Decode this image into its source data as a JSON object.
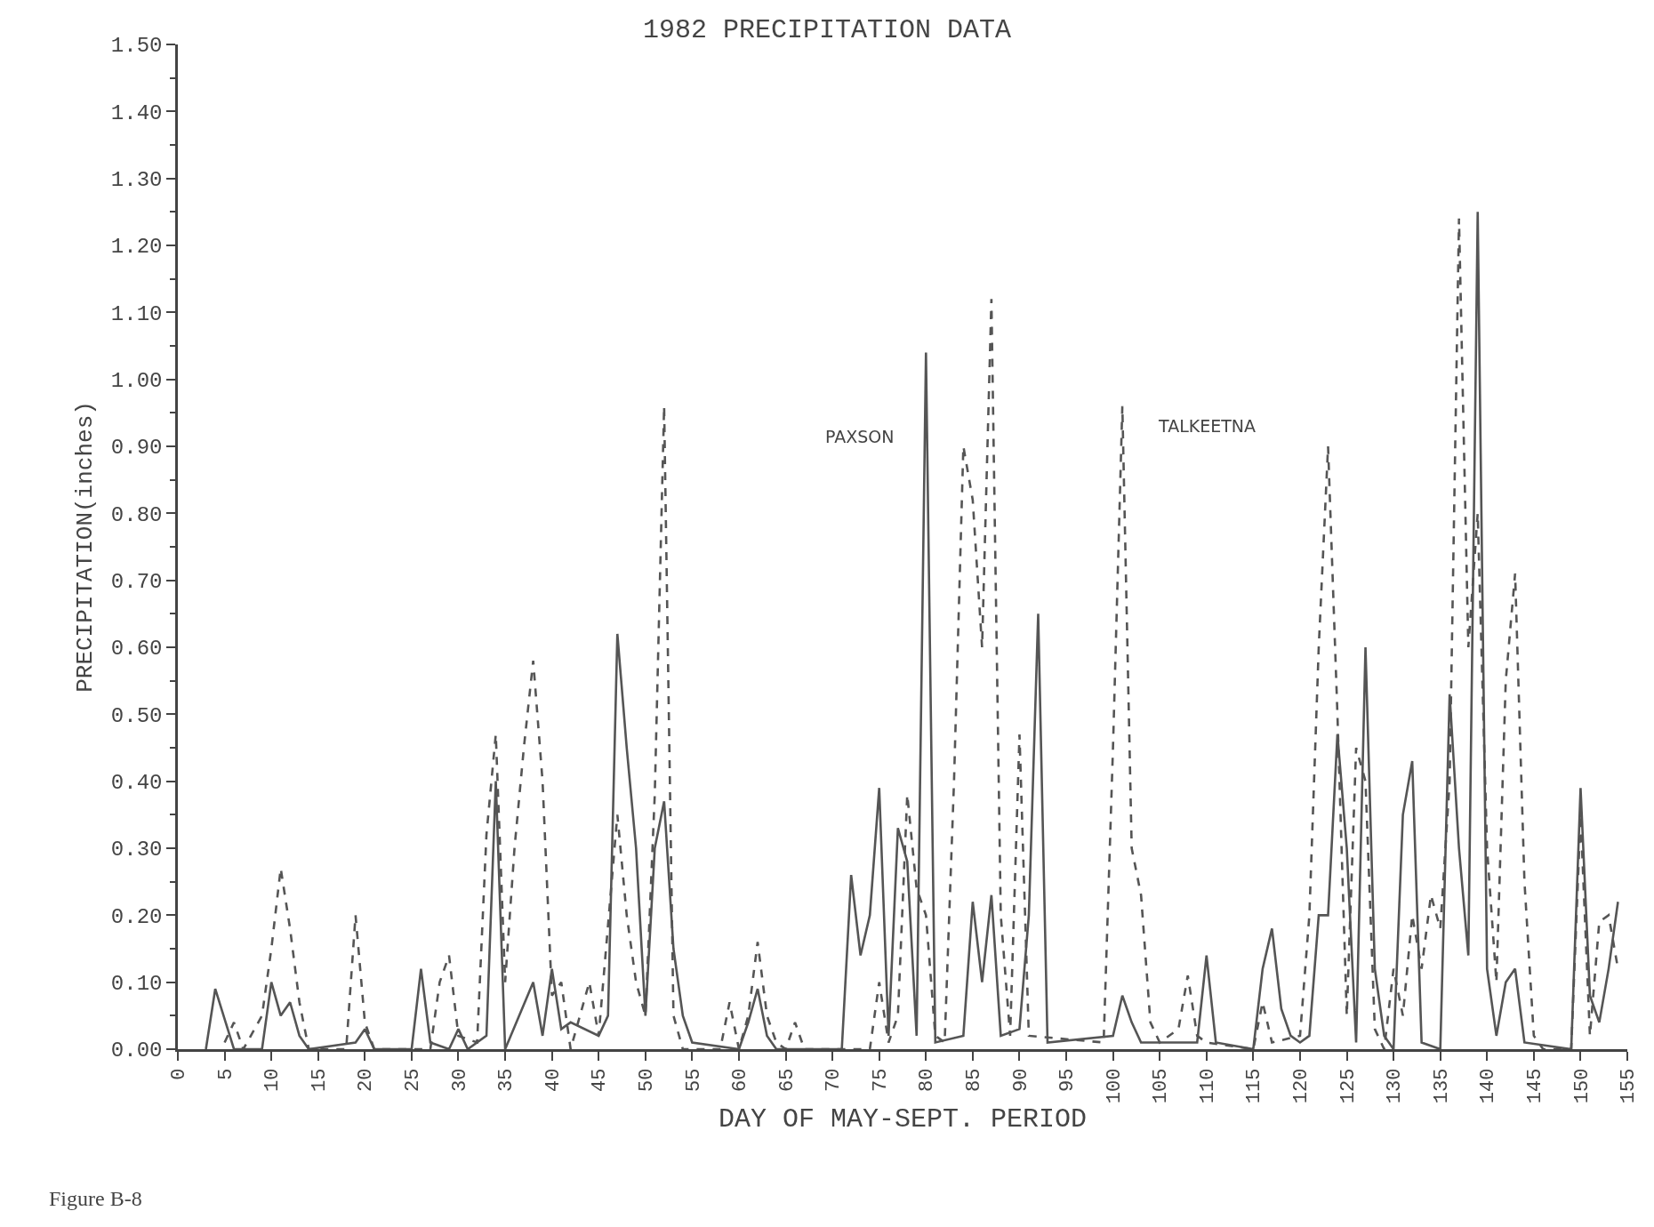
{
  "chart_data": {
    "type": "line",
    "title": "1982 PRECIPITATION DATA",
    "xlabel": "DAY OF MAY-SEPT. PERIOD",
    "ylabel": "PRECIPITATION(inches)",
    "annotations": [
      "Figure B-8"
    ],
    "xlim": [
      0,
      155
    ],
    "ylim": [
      0,
      1.5
    ],
    "xticks": [
      0,
      5,
      10,
      15,
      20,
      25,
      30,
      35,
      40,
      45,
      50,
      55,
      60,
      65,
      70,
      75,
      80,
      85,
      90,
      95,
      100,
      105,
      110,
      115,
      120,
      125,
      130,
      135,
      140,
      145,
      150,
      155
    ],
    "yticks": [
      {
        "value": 0,
        "label": "0.00"
      },
      {
        "value": 0.1,
        "label": "0.10"
      },
      {
        "value": 0.2,
        "label": "0.20"
      },
      {
        "value": 0.3,
        "label": "0.30"
      },
      {
        "value": 0.4,
        "label": "0.40"
      },
      {
        "value": 0.5,
        "label": "0.50"
      },
      {
        "value": 0.6,
        "label": "0.60"
      },
      {
        "value": 0.7,
        "label": "0.70"
      },
      {
        "value": 0.8,
        "label": "0.80"
      },
      {
        "value": 0.9,
        "label": "0.90"
      },
      {
        "value": 1.0,
        "label": "1.00"
      },
      {
        "value": 1.1,
        "label": "1.10"
      },
      {
        "value": 1.2,
        "label": "1.20"
      },
      {
        "value": 1.3,
        "label": "1.30"
      },
      {
        "value": 1.4,
        "label": "1.40"
      },
      {
        "value": 1.5,
        "label": "1.50"
      }
    ],
    "legend": false,
    "marker": "none",
    "series": [
      {
        "name": "PAXSON",
        "color": "#555555",
        "line_style": "solid",
        "x": [
          3,
          4,
          6,
          9,
          10,
          11,
          12,
          13,
          14,
          19,
          20,
          21,
          25,
          26,
          27,
          29,
          30,
          31,
          33,
          34,
          35,
          38,
          39,
          40,
          41,
          42,
          45,
          46,
          47,
          48,
          49,
          50,
          51,
          52,
          53,
          54,
          55,
          60,
          61,
          62,
          63,
          64,
          71,
          72,
          73,
          74,
          75,
          76,
          77,
          78,
          79,
          80,
          81,
          84,
          85,
          86,
          87,
          88,
          90,
          91,
          92,
          93,
          100,
          101,
          102,
          103,
          109,
          110,
          111,
          115,
          116,
          117,
          118,
          119,
          120,
          121,
          122,
          123,
          124,
          125,
          126,
          127,
          128,
          129,
          130,
          131,
          132,
          133,
          135,
          136,
          137,
          138,
          139,
          140,
          141,
          142,
          143,
          144,
          149,
          150,
          151,
          152,
          153,
          154
        ],
        "values": [
          0,
          0.09,
          0,
          0,
          0.1,
          0.05,
          0.07,
          0.02,
          0,
          0.01,
          0.03,
          0,
          0,
          0.12,
          0.01,
          0,
          0.03,
          0,
          0.02,
          0.4,
          0,
          0.1,
          0.02,
          0.12,
          0.03,
          0.04,
          0.02,
          0.05,
          0.62,
          0.45,
          0.3,
          0.05,
          0.3,
          0.37,
          0.15,
          0.05,
          0.01,
          0,
          0.04,
          0.09,
          0.02,
          0,
          0,
          0.26,
          0.14,
          0.2,
          0.39,
          0.02,
          0.33,
          0.28,
          0.02,
          1.04,
          0.01,
          0.02,
          0.22,
          0.1,
          0.23,
          0.02,
          0.03,
          0.2,
          0.65,
          0.01,
          0.02,
          0.08,
          0.04,
          0.01,
          0.01,
          0.14,
          0.01,
          0,
          0.12,
          0.18,
          0.06,
          0.02,
          0.01,
          0.02,
          0.2,
          0.2,
          0.47,
          0.3,
          0.01,
          0.6,
          0.12,
          0.02,
          0,
          0.35,
          0.43,
          0.01,
          0,
          0.53,
          0.3,
          0.14,
          1.25,
          0.12,
          0.02,
          0.1,
          0.12,
          0.01,
          0,
          0.39,
          0.08,
          0.04,
          0.12,
          0.22
        ]
      },
      {
        "name": "TALKEETNA",
        "color": "#555555",
        "line_style": "dashed",
        "x": [
          5,
          6,
          7,
          9,
          10,
          11,
          12,
          13,
          14,
          18,
          19,
          20,
          21,
          27,
          28,
          29,
          30,
          32,
          33,
          34,
          35,
          36,
          37,
          38,
          39,
          40,
          41,
          42,
          44,
          45,
          47,
          48,
          49,
          50,
          51,
          52,
          53,
          54,
          58,
          59,
          60,
          61,
          62,
          63,
          64,
          65,
          66,
          67,
          74,
          75,
          76,
          77,
          78,
          79,
          80,
          81,
          82,
          83,
          84,
          85,
          86,
          87,
          88,
          89,
          90,
          91,
          99,
          100,
          101,
          102,
          103,
          104,
          105,
          107,
          108,
          109,
          110,
          115,
          116,
          117,
          120,
          121,
          122,
          123,
          124,
          125,
          126,
          127,
          128,
          129,
          130,
          131,
          132,
          133,
          134,
          135,
          136,
          137,
          138,
          139,
          140,
          141,
          142,
          143,
          144,
          145,
          146,
          149,
          150,
          151,
          152,
          153,
          154
        ],
        "values": [
          0.01,
          0.04,
          0,
          0.05,
          0.15,
          0.27,
          0.18,
          0.07,
          0,
          0,
          0.2,
          0.04,
          0,
          0,
          0.1,
          0.14,
          0.02,
          0.01,
          0.32,
          0.47,
          0.1,
          0.3,
          0.45,
          0.58,
          0.4,
          0.08,
          0.1,
          0,
          0.1,
          0.02,
          0.35,
          0.2,
          0.1,
          0.05,
          0.38,
          0.96,
          0.05,
          0,
          0,
          0.07,
          0,
          0.05,
          0.16,
          0.05,
          0.01,
          0,
          0.04,
          0,
          0,
          0.1,
          0.01,
          0.05,
          0.38,
          0.24,
          0.2,
          0.02,
          0.01,
          0.4,
          0.9,
          0.82,
          0.6,
          1.12,
          0.2,
          0.02,
          0.47,
          0.02,
          0.01,
          0.45,
          0.96,
          0.3,
          0.23,
          0.04,
          0.01,
          0.03,
          0.11,
          0.02,
          0.01,
          0,
          0.07,
          0.01,
          0.02,
          0.2,
          0.6,
          0.9,
          0.5,
          0.05,
          0.45,
          0.4,
          0.03,
          0,
          0.12,
          0.05,
          0.2,
          0.12,
          0.23,
          0.18,
          0.4,
          1.24,
          0.6,
          0.8,
          0.3,
          0.1,
          0.55,
          0.71,
          0.25,
          0.02,
          0,
          0,
          0.35,
          0.02,
          0.19,
          0.2,
          0.12
        ]
      }
    ]
  }
}
